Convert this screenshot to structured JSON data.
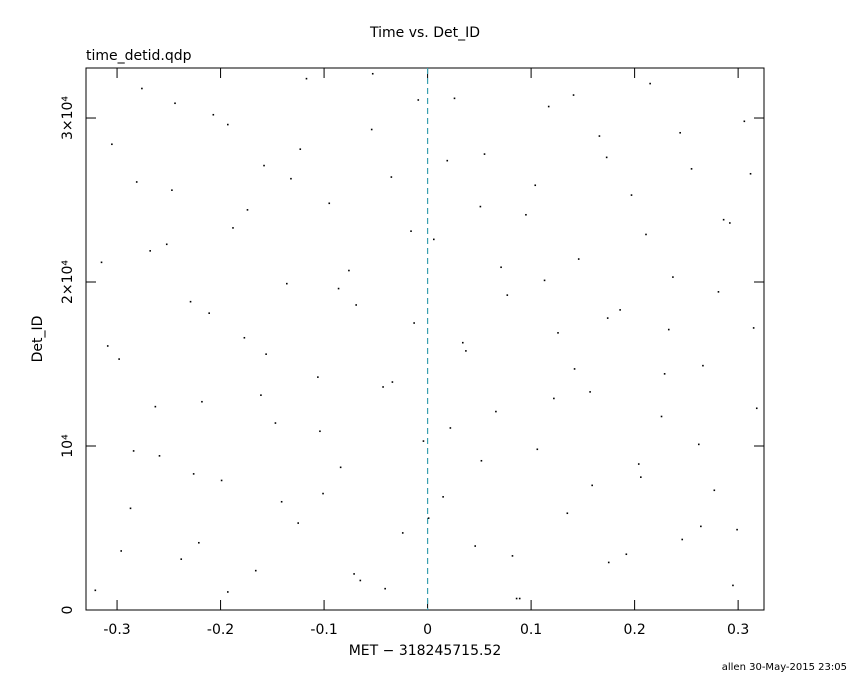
{
  "chart_data": {
    "type": "scatter",
    "title": "Time vs. Det_ID",
    "subtitle": "time_detid.qdp",
    "x_label": "MET − 318245715.52",
    "y_label": "Det_ID",
    "footer": "allen 30-May-2015 23:05",
    "xlim": [
      -0.33,
      0.325
    ],
    "ylim": [
      0,
      33050
    ],
    "xticks": [
      -0.3,
      -0.2,
      -0.1,
      0,
      0.1,
      0.2,
      0.3
    ],
    "yticks": [
      0,
      {
        "value": 10000,
        "label": "10⁴"
      },
      {
        "value": 20000,
        "label": "2×10⁴"
      },
      {
        "value": 30000,
        "label": "3×10⁴"
      }
    ],
    "vline": 0,
    "vline_color": "#3aa0b0",
    "color": "#000000",
    "series": [
      {
        "name": "Det_ID",
        "x": [
          -0.321,
          -0.305,
          -0.298,
          -0.287,
          -0.276,
          -0.268,
          -0.259,
          -0.247,
          -0.238,
          -0.229,
          -0.218,
          -0.207,
          -0.199,
          -0.188,
          -0.177,
          -0.166,
          -0.158,
          -0.147,
          -0.136,
          -0.125,
          -0.117,
          -0.106,
          -0.095,
          -0.084,
          -0.076,
          -0.065,
          -0.054,
          -0.043,
          -0.035,
          -0.024,
          -0.013,
          -0.004,
          0.006,
          0.015,
          0.026,
          0.037,
          0.046,
          0.055,
          0.066,
          0.077,
          0.086,
          0.095,
          0.106,
          0.117,
          0.126,
          0.135,
          0.146,
          0.157,
          0.166,
          0.175,
          0.186,
          0.197,
          0.206,
          0.215,
          0.226,
          0.237,
          0.246,
          0.255,
          0.266,
          0.277,
          0.286,
          0.295,
          0.306,
          0.315,
          -0.315,
          -0.296,
          -0.281,
          -0.263,
          -0.244,
          -0.226,
          -0.211,
          -0.193,
          -0.174,
          -0.156,
          -0.141,
          -0.123,
          -0.104,
          -0.086,
          -0.071,
          -0.053,
          -0.034,
          -0.016,
          0.001,
          0.019,
          0.034,
          0.052,
          0.071,
          0.089,
          0.104,
          0.122,
          0.141,
          0.159,
          0.174,
          0.192,
          0.211,
          0.229,
          0.244,
          0.262,
          0.281,
          0.299,
          0.312,
          -0.309,
          -0.284,
          -0.252,
          -0.221,
          -0.193,
          -0.161,
          -0.132,
          -0.101,
          -0.069,
          -0.041,
          -0.009,
          0.022,
          0.051,
          0.082,
          0.113,
          0.142,
          0.173,
          0.204,
          0.233,
          0.264,
          0.292,
          0.318
        ],
        "values": [
          1200,
          28400,
          15300,
          6200,
          31800,
          21900,
          9400,
          25600,
          3100,
          18800,
          12700,
          30200,
          7900,
          23300,
          16600,
          2400,
          27100,
          11400,
          19900,
          5300,
          32400,
          14200,
          24800,
          8700,
          20700,
          1800,
          29300,
          13600,
          26400,
          4700,
          17500,
          10300,
          22600,
          6900,
          31200,
          15800,
          3900,
          27800,
          12100,
          19200,
          700,
          24100,
          9800,
          30700,
          16900,
          5900,
          21400,
          13300,
          28900,
          2900,
          18300,
          25300,
          8100,
          32100,
          11800,
          20300,
          4300,
          26900,
          14900,
          7300,
          23800,
          1500,
          29800,
          17200,
          21200,
          3600,
          26100,
          12400,
          30900,
          8300,
          18100,
          1100,
          24400,
          15600,
          6600,
          28100,
          10900,
          19600,
          2200,
          32700,
          13900,
          23100,
          5600,
          27400,
          16300,
          9100,
          20900,
          700,
          25900,
          12900,
          31400,
          7600,
          17800,
          3400,
          22900,
          14400,
          29100,
          10100,
          19400,
          4900,
          26600,
          16100,
          9700,
          22300,
          4100,
          29600,
          13100,
          26300,
          7100,
          18600,
          1300,
          31100,
          11100,
          24600,
          3300,
          20100,
          14700,
          27600,
          8900,
          17100,
          5100,
          23600,
          12300
        ]
      }
    ]
  }
}
